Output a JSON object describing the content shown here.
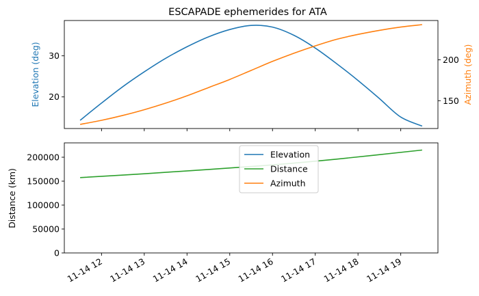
{
  "chart_data": [
    {
      "type": "line",
      "title": "ESCAPADE ephemerides for ATA",
      "x_ticks": [
        "11-14 12",
        "11-14 13",
        "11-14 14",
        "11-14 15",
        "11-14 16",
        "11-14 17",
        "11-14 18",
        "11-14 19"
      ],
      "left_axis": {
        "label": "Elevation (deg)",
        "ticks": [
          20,
          30
        ],
        "range": [
          12.3,
          38.6
        ],
        "color": "#1f77b4"
      },
      "right_axis": {
        "label": "Azimuth (deg)",
        "ticks": [
          150,
          200
        ],
        "range": [
          116,
          248
        ],
        "color": "#ff7f0e"
      },
      "series": [
        {
          "name": "Elevation",
          "axis": "left",
          "color": "#1f77b4",
          "points": [
            [
              "11-14 11:30",
              14.3
            ],
            [
              "11-14 12:00",
              18.5
            ],
            [
              "11-14 12:30",
              22.5
            ],
            [
              "11-14 13:00",
              26.1
            ],
            [
              "11-14 13:30",
              29.4
            ],
            [
              "11-14 14:00",
              32.2
            ],
            [
              "11-14 14:30",
              34.6
            ],
            [
              "11-14 15:00",
              36.4
            ],
            [
              "11-14 15:30",
              37.4
            ],
            [
              "11-14 16:00",
              37.0
            ],
            [
              "11-14 16:30",
              35.0
            ],
            [
              "11-14 17:00",
              31.9
            ],
            [
              "11-14 17:30",
              28.1
            ],
            [
              "11-14 18:00",
              24.0
            ],
            [
              "11-14 18:30",
              19.6
            ],
            [
              "11-14 19:00",
              15.1
            ],
            [
              "11-14 19:30",
              12.9
            ]
          ]
        },
        {
          "name": "Azimuth",
          "axis": "right",
          "color": "#ff7f0e",
          "points": [
            [
              "11-14 11:30",
              121
            ],
            [
              "11-14 12:00",
              126
            ],
            [
              "11-14 12:30",
              132
            ],
            [
              "11-14 13:00",
              139
            ],
            [
              "11-14 13:30",
              147
            ],
            [
              "11-14 14:00",
              156
            ],
            [
              "11-14 14:30",
              166
            ],
            [
              "11-14 15:00",
              176
            ],
            [
              "11-14 15:30",
              187
            ],
            [
              "11-14 16:00",
              198
            ],
            [
              "11-14 16:30",
              208
            ],
            [
              "11-14 17:00",
              217
            ],
            [
              "11-14 17:30",
              225
            ],
            [
              "11-14 18:00",
              231
            ],
            [
              "11-14 18:30",
              236
            ],
            [
              "11-14 19:00",
              240
            ],
            [
              "11-14 19:30",
              243
            ]
          ]
        }
      ]
    },
    {
      "type": "line",
      "x_ticks": [
        "11-14 12",
        "11-14 13",
        "11-14 14",
        "11-14 15",
        "11-14 16",
        "11-14 17",
        "11-14 18",
        "11-14 19"
      ],
      "left_axis": {
        "label": "Distance (km)",
        "ticks": [
          0,
          50000,
          100000,
          150000,
          200000
        ],
        "range": [
          0,
          230000
        ],
        "color": "#000000"
      },
      "series": [
        {
          "name": "Distance",
          "axis": "left",
          "color": "#2ca02c",
          "points": [
            [
              "11-14 11:30",
              157500
            ],
            [
              "11-14 13:00",
              165500
            ],
            [
              "11-14 14:30",
              174500
            ],
            [
              "11-14 16:00",
              184000
            ],
            [
              "11-14 17:30",
              196000
            ],
            [
              "11-14 19:30",
              215000
            ]
          ]
        }
      ],
      "legend": {
        "placement": "top-center",
        "entries": [
          {
            "label": "Elevation",
            "color": "#1f77b4"
          },
          {
            "label": "Distance",
            "color": "#2ca02c"
          },
          {
            "label": "Azimuth",
            "color": "#ff7f0e"
          }
        ]
      }
    }
  ]
}
